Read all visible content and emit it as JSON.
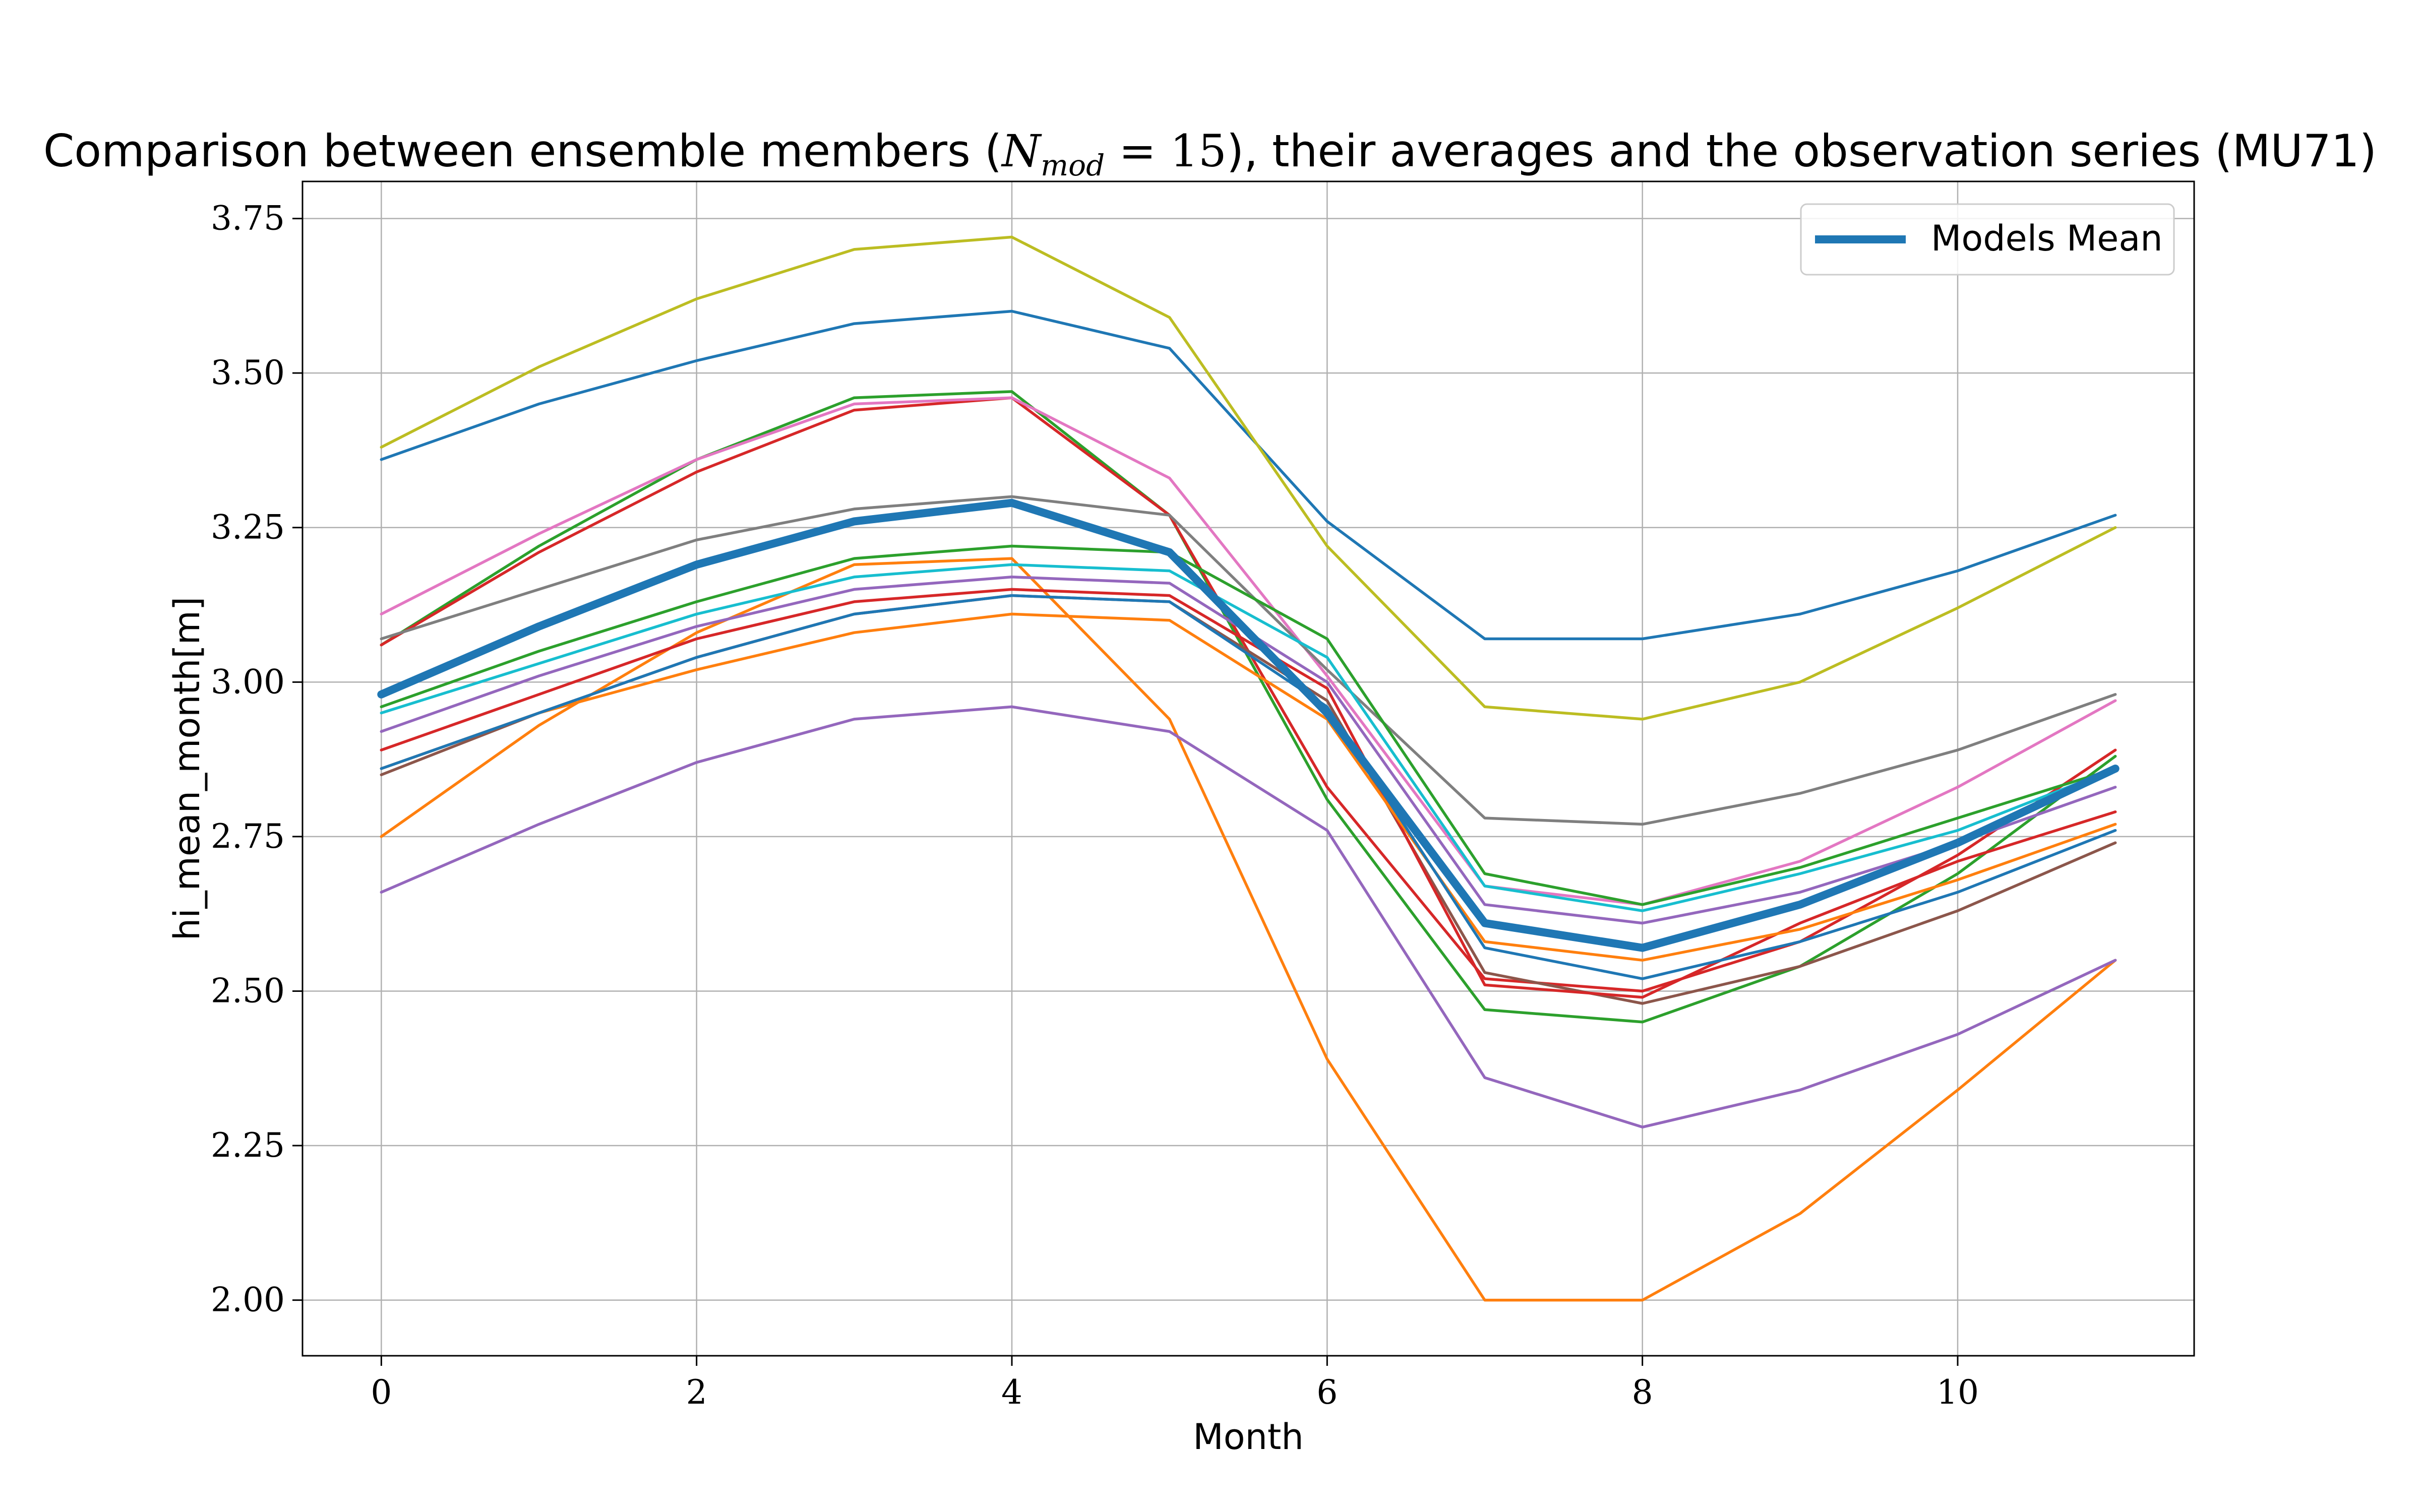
{
  "chart_data": {
    "type": "line",
    "title": "Comparison between ensemble members (N_mod = 15), their averages and the observation series (MU71)",
    "title_parts": {
      "before": "Comparison between ensemble members (",
      "math_base": "N",
      "math_sub": "mod",
      "math_rest": " = 15",
      "after": "), their averages and the observation series (MU71)"
    },
    "xlabel": "Month",
    "ylabel": "hi_mean_month[m]",
    "xlim": [
      -0.5,
      11.5
    ],
    "ylim": [
      1.91,
      3.81
    ],
    "xticks": [
      0,
      2,
      4,
      6,
      8,
      10
    ],
    "xtick_labels": [
      "0",
      "2",
      "4",
      "6",
      "8",
      "10"
    ],
    "yticks": [
      2.0,
      2.25,
      2.5,
      2.75,
      3.0,
      3.25,
      3.5,
      3.75
    ],
    "ytick_labels": [
      "2.00",
      "2.25",
      "2.50",
      "2.75",
      "3.00",
      "3.25",
      "3.50",
      "3.75"
    ],
    "grid": true,
    "legend": {
      "placement": "top-right",
      "entries": [
        "Models Mean"
      ]
    },
    "x": [
      0,
      1,
      2,
      3,
      4,
      5,
      6,
      7,
      8,
      9,
      10,
      11
    ],
    "series": [
      {
        "color": "#1f77b4",
        "values": [
          3.36,
          3.45,
          3.52,
          3.58,
          3.6,
          3.54,
          3.26,
          3.07,
          3.07,
          3.11,
          3.18,
          3.27
        ]
      },
      {
        "color": "#ff7f0e",
        "values": [
          2.75,
          2.93,
          3.08,
          3.19,
          3.2,
          2.94,
          2.39,
          2.0,
          2.0,
          2.14,
          2.34,
          2.55
        ]
      },
      {
        "color": "#2ca02c",
        "values": [
          3.06,
          3.22,
          3.36,
          3.46,
          3.47,
          3.27,
          2.81,
          2.47,
          2.45,
          2.54,
          2.69,
          2.88
        ]
      },
      {
        "color": "#d62728",
        "values": [
          3.06,
          3.21,
          3.34,
          3.44,
          3.46,
          3.27,
          2.83,
          2.52,
          2.5,
          2.58,
          2.72,
          2.89
        ]
      },
      {
        "color": "#9467bd",
        "values": [
          2.66,
          2.77,
          2.87,
          2.94,
          2.96,
          2.92,
          2.76,
          2.36,
          2.28,
          2.34,
          2.43,
          2.55
        ]
      },
      {
        "color": "#8c564b",
        "values": [
          2.85,
          2.95,
          3.04,
          3.11,
          3.14,
          3.13,
          2.97,
          2.53,
          2.48,
          2.54,
          2.63,
          2.74
        ]
      },
      {
        "color": "#e377c2",
        "values": [
          3.11,
          3.24,
          3.36,
          3.45,
          3.46,
          3.33,
          3.01,
          2.67,
          2.64,
          2.71,
          2.83,
          2.97
        ]
      },
      {
        "color": "#7f7f7f",
        "values": [
          3.07,
          3.15,
          3.23,
          3.28,
          3.3,
          3.27,
          3.02,
          2.78,
          2.77,
          2.82,
          2.89,
          2.98
        ]
      },
      {
        "color": "#bcbd22",
        "values": [
          3.38,
          3.51,
          3.62,
          3.7,
          3.72,
          3.59,
          3.22,
          2.96,
          2.94,
          3.0,
          3.12,
          3.25
        ]
      },
      {
        "color": "#17becf",
        "values": [
          2.95,
          3.03,
          3.11,
          3.17,
          3.19,
          3.18,
          3.04,
          2.67,
          2.63,
          2.69,
          2.76,
          2.86
        ]
      },
      {
        "color": "#2ca02c",
        "values": [
          2.96,
          3.05,
          3.13,
          3.2,
          3.22,
          3.21,
          3.07,
          2.69,
          2.64,
          2.7,
          2.78,
          2.86
        ]
      },
      {
        "color": "#9467bd",
        "values": [
          2.92,
          3.01,
          3.09,
          3.15,
          3.17,
          3.16,
          3.0,
          2.64,
          2.61,
          2.66,
          2.74,
          2.83
        ]
      },
      {
        "color": "#d62728",
        "values": [
          2.89,
          2.98,
          3.07,
          3.13,
          3.15,
          3.14,
          2.99,
          2.51,
          2.49,
          2.61,
          2.71,
          2.79
        ]
      },
      {
        "color": "#ff7f0e",
        "values": [
          2.86,
          2.95,
          3.02,
          3.08,
          3.11,
          3.1,
          2.94,
          2.58,
          2.55,
          2.6,
          2.68,
          2.77
        ]
      },
      {
        "color": "#1f77b4",
        "values": [
          2.86,
          2.95,
          3.04,
          3.11,
          3.14,
          3.13,
          2.96,
          2.57,
          2.52,
          2.58,
          2.66,
          2.76
        ]
      },
      {
        "name": "Models Mean",
        "color": "#1f77b4",
        "width": "thick",
        "values": [
          2.98,
          3.09,
          3.19,
          3.26,
          3.29,
          3.21,
          2.95,
          2.61,
          2.57,
          2.64,
          2.74,
          2.86
        ]
      }
    ]
  }
}
